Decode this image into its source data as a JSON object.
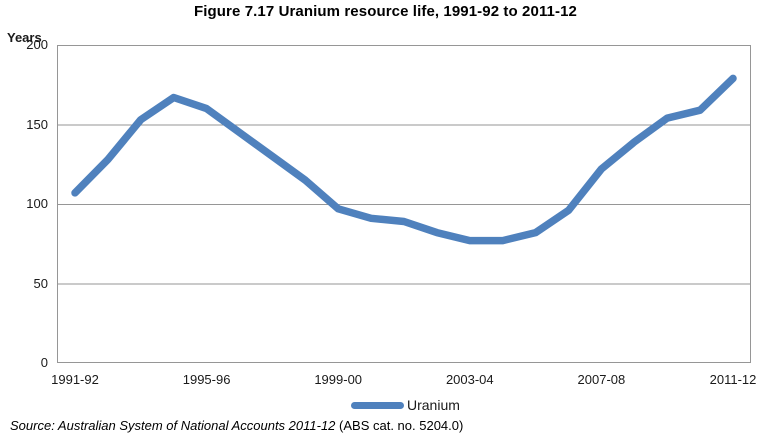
{
  "chart_data": {
    "type": "line",
    "title": "Figure 7.17 Uranium resource life, 1991-92 to 2011-12",
    "ylabel": "Years",
    "xlabel": "",
    "ylim": [
      0,
      200
    ],
    "ytick_interval": 50,
    "yticks": [
      0,
      50,
      100,
      150,
      200
    ],
    "grid": "horizontal gridlines every 50 years, full plot border",
    "legend_position": "bottom center",
    "categories": [
      "1991-92",
      "1992-93",
      "1993-94",
      "1994-95",
      "1995-96",
      "1996-97",
      "1997-98",
      "1998-99",
      "1999-00",
      "2000-01",
      "2001-02",
      "2002-03",
      "2003-04",
      "2004-05",
      "2005-06",
      "2006-07",
      "2007-08",
      "2008-09",
      "2009-10",
      "2010-11",
      "2011-12"
    ],
    "labeled_xticks": [
      "1991-92",
      "1995-96",
      "1999-00",
      "2003-04",
      "2007-08",
      "2011-12"
    ],
    "series": [
      {
        "name": "Uranium",
        "color": "#4F81BD",
        "values": [
          107,
          128,
          153,
          167,
          160,
          145,
          130,
          115,
          97,
          91,
          89,
          82,
          77,
          77,
          82,
          96,
          122,
          139,
          154,
          159,
          179
        ]
      }
    ]
  },
  "source": {
    "italic_text": "Source: Australian System of National Accounts 2011-12",
    "regular_text": " (ABS cat. no. 5204.0)"
  },
  "colors": {
    "series_blue": "#4F81BD",
    "gridline_gray": "#969696",
    "text_black": "#1a1a1a"
  }
}
